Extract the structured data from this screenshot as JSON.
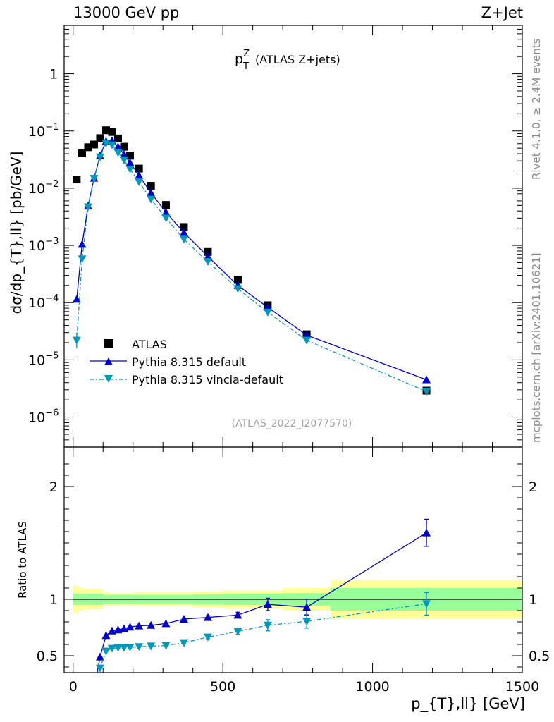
{
  "header": {
    "left": "13000 GeV pp",
    "right": "Z+Jet"
  },
  "side_labels": {
    "rivet": "Rivet 4.1.0, ≥ 2.4M events",
    "mcplots": "mcplots.cern.ch [arXiv:2401.10621]"
  },
  "watermark": "(ATLAS_2022_I2077570)",
  "chart_data": [
    {
      "type": "scatter",
      "title_main": "p",
      "title_sup": "Z",
      "title_sub": "T",
      "title_rest": " (ATLAS Z+jets)",
      "ylabel": "dσ/dp_{T},ll} [pb/GeV]",
      "yscale": "log",
      "ylim": [
        3e-07,
        7
      ],
      "xlim": [
        -30,
        1500
      ],
      "ytick_labels": [
        {
          "value": 1,
          "base": "1",
          "exp": ""
        },
        {
          "value": 0.1,
          "base": "10",
          "exp": "−1"
        },
        {
          "value": 0.01,
          "base": "10",
          "exp": "−2"
        },
        {
          "value": 0.001,
          "base": "10",
          "exp": "−3"
        },
        {
          "value": 0.0001,
          "base": "10",
          "exp": "−4"
        },
        {
          "value": 1e-05,
          "base": "10",
          "exp": "−5"
        },
        {
          "value": 1e-06,
          "base": "10",
          "exp": "−6"
        }
      ],
      "series": [
        {
          "name": "ATLAS",
          "color": "#000000",
          "marker": "square",
          "x": [
            12,
            30,
            50,
            70,
            90,
            110,
            130,
            150,
            170,
            190,
            220,
            260,
            310,
            370,
            450,
            550,
            650,
            780,
            1180
          ],
          "y": [
            0.0142,
            0.041,
            0.052,
            0.058,
            0.075,
            0.103,
            0.096,
            0.074,
            0.053,
            0.037,
            0.022,
            0.011,
            0.0051,
            0.0021,
            0.00077,
            0.00025,
            9e-05,
            2.8e-05,
            2.9e-06
          ]
        },
        {
          "name": "Pythia 8.315 default",
          "color": "#0000cc",
          "marker": "triangle-up",
          "x": [
            12,
            30,
            50,
            70,
            90,
            110,
            130,
            150,
            170,
            190,
            220,
            260,
            310,
            370,
            450,
            550,
            650,
            780,
            1180
          ],
          "y": [
            0.000115,
            0.00105,
            0.0049,
            0.015,
            0.037,
            0.066,
            0.068,
            0.053,
            0.039,
            0.028,
            0.0168,
            0.0083,
            0.0038,
            0.00168,
            0.00064,
            0.0002,
            8.3e-05,
            2.7e-05,
            4.5e-06
          ]
        },
        {
          "name": "Pythia 8.315 vincia-default",
          "color": "#0099bb",
          "marker": "triangle-down",
          "x": [
            12,
            30,
            50,
            70,
            90,
            110,
            130,
            150,
            170,
            190,
            220,
            260,
            310,
            370,
            450,
            550,
            650,
            780,
            1180
          ],
          "y": [
            2.2e-05,
            0.00058,
            0.0047,
            0.0148,
            0.035,
            0.061,
            0.057,
            0.042,
            0.031,
            0.0215,
            0.0129,
            0.0064,
            0.003,
            0.00128,
            0.00052,
            0.000175,
            6.8e-05,
            2.2e-05,
            2.8e-06
          ]
        }
      ]
    },
    {
      "type": "scatter",
      "ylabel": "Ratio to ATLAS",
      "xlabel": "p_{T},ll} [GeV]",
      "ylim": [
        0.35,
        2.35
      ],
      "xlim": [
        -30,
        1500
      ],
      "xticks": [
        0,
        500,
        1000,
        1500
      ],
      "yticks": [
        0.5,
        1,
        2
      ],
      "bands": [
        {
          "x0": 0,
          "x1": 20,
          "stat": 0.05,
          "total": 0.12
        },
        {
          "x0": 20,
          "x1": 40,
          "stat": 0.05,
          "total": 0.1
        },
        {
          "x0": 40,
          "x1": 100,
          "stat": 0.05,
          "total": 0.09
        },
        {
          "x0": 100,
          "x1": 120,
          "stat": 0.04,
          "total": 0.06
        },
        {
          "x0": 120,
          "x1": 200,
          "stat": 0.04,
          "total": 0.055
        },
        {
          "x0": 200,
          "x1": 400,
          "stat": 0.04,
          "total": 0.06
        },
        {
          "x0": 400,
          "x1": 500,
          "stat": 0.045,
          "total": 0.07
        },
        {
          "x0": 500,
          "x1": 700,
          "stat": 0.05,
          "total": 0.08
        },
        {
          "x0": 700,
          "x1": 860,
          "stat": 0.055,
          "total": 0.1
        },
        {
          "x0": 860,
          "x1": 1500,
          "stat": 0.1,
          "total": 0.17
        }
      ],
      "series": [
        {
          "name": "Pythia 8.315 default",
          "color": "#0000cc",
          "marker": "triangle-up",
          "x": [
            90,
            110,
            130,
            150,
            170,
            190,
            220,
            260,
            310,
            370,
            450,
            550,
            650,
            780,
            1180
          ],
          "y": [
            0.49,
            0.68,
            0.72,
            0.73,
            0.74,
            0.755,
            0.765,
            0.77,
            0.785,
            0.825,
            0.84,
            0.86,
            0.955,
            0.93,
            1.59
          ],
          "err": [
            0,
            0,
            0,
            0,
            0,
            0,
            0,
            0,
            0,
            0.01,
            0.015,
            0.025,
            0.055,
            0.07,
            0.12
          ]
        },
        {
          "name": "Pythia 8.315 vincia-default",
          "color": "#0099bb",
          "marker": "triangle-down",
          "x": [
            90,
            110,
            130,
            150,
            170,
            190,
            220,
            260,
            310,
            370,
            450,
            550,
            650,
            780,
            1180
          ],
          "y": [
            0.39,
            0.54,
            0.565,
            0.57,
            0.57,
            0.575,
            0.58,
            0.585,
            0.59,
            0.615,
            0.665,
            0.715,
            0.77,
            0.805,
            0.96
          ],
          "err": [
            0,
            0,
            0,
            0,
            0,
            0,
            0,
            0,
            0,
            0.01,
            0.015,
            0.025,
            0.05,
            0.06,
            0.1
          ]
        }
      ]
    }
  ]
}
